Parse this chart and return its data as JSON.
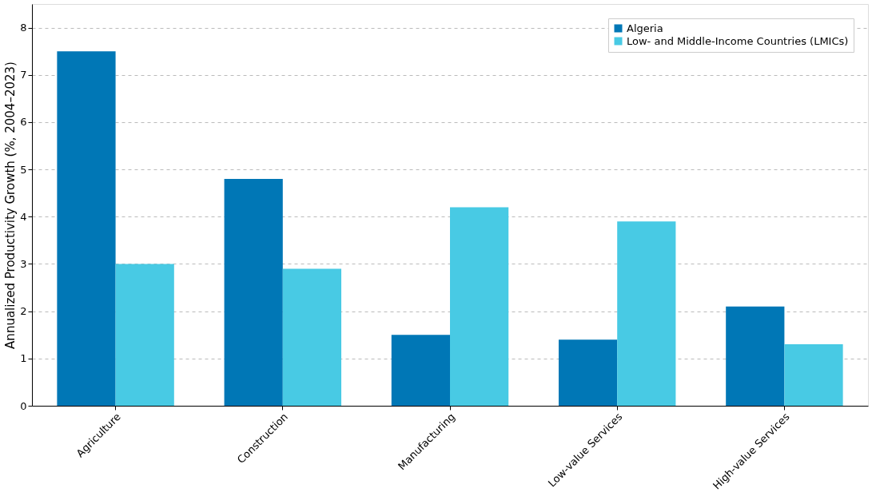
{
  "chart_data": {
    "type": "bar",
    "ylabel": "Annualized Productivity Growth (%, 2004–2023)",
    "categories": [
      "Agriculture",
      "Construction",
      "Manufacturing",
      "Low-value Services",
      "High-value Services"
    ],
    "series": [
      {
        "name": "Algeria",
        "color": "#0077b6",
        "values": [
          7.5,
          4.8,
          1.5,
          1.4,
          2.1
        ]
      },
      {
        "name": "Low- and Middle-Income Countries (LMICs)",
        "color": "#48cae4",
        "values": [
          3.0,
          2.9,
          4.2,
          3.9,
          1.3
        ]
      }
    ],
    "ylim": [
      0,
      8.5
    ],
    "yticks": [
      0,
      1,
      2,
      3,
      4,
      5,
      6,
      7,
      8
    ],
    "grid": "y",
    "legend": "top right"
  }
}
